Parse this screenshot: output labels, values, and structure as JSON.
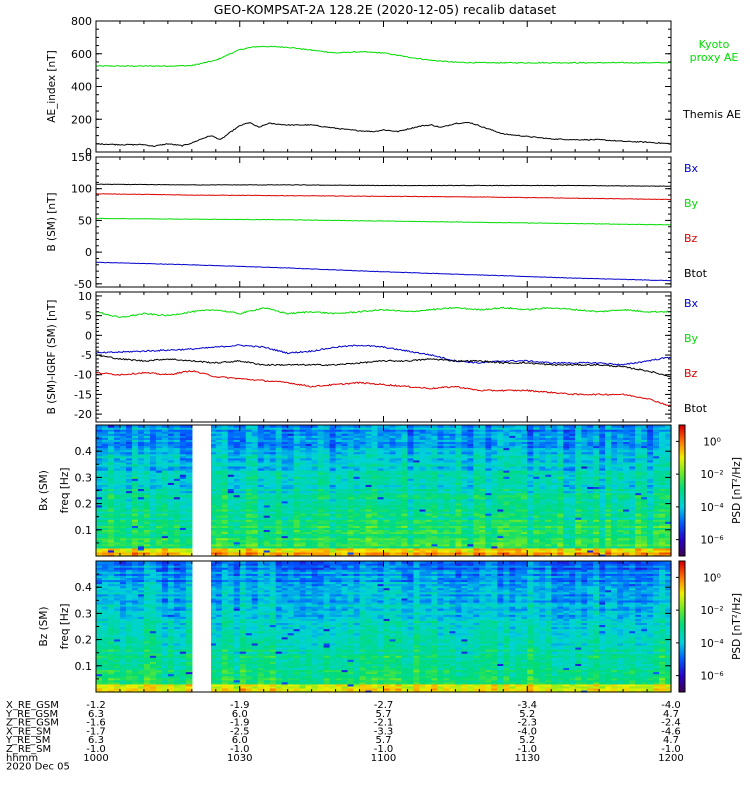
{
  "chart_data": [
    {
      "type": "line",
      "title": "GEO-KOMPSAT-2A 128.2E (2020-12-05) recalib dataset",
      "ylabel": "AE_index [nT]",
      "ylim": [
        0,
        800
      ],
      "yticks": [
        0,
        200,
        400,
        600,
        800
      ],
      "xlim": [
        0,
        120
      ],
      "series": [
        {
          "name": "Kyoto proxy AE",
          "label_lines": [
            "Kyoto",
            "proxy AE"
          ],
          "color": "#00dd00",
          "x": [
            0,
            5,
            10,
            15,
            20,
            25,
            28,
            30,
            33,
            35,
            40,
            45,
            50,
            55,
            60,
            65,
            70,
            75,
            80,
            85,
            90,
            95,
            100,
            110,
            120
          ],
          "values": [
            525,
            525,
            525,
            525,
            528,
            560,
            600,
            625,
            642,
            645,
            640,
            622,
            605,
            612,
            605,
            580,
            560,
            548,
            545,
            545,
            545,
            545,
            545,
            545,
            545
          ]
        },
        {
          "name": "Themis AE",
          "label_lines": [
            "Themis AE"
          ],
          "color": "#000000",
          "x": [
            0,
            5,
            10,
            12,
            15,
            18,
            20,
            22,
            24,
            26,
            28,
            30,
            32,
            34,
            36,
            38,
            40,
            45,
            50,
            53,
            55,
            58,
            60,
            63,
            65,
            68,
            70,
            72,
            75,
            78,
            80,
            85,
            90,
            95,
            100,
            105,
            110,
            115,
            120
          ],
          "values": [
            50,
            45,
            45,
            35,
            50,
            38,
            55,
            80,
            100,
            75,
            120,
            160,
            180,
            150,
            175,
            170,
            165,
            165,
            145,
            135,
            130,
            125,
            135,
            125,
            140,
            160,
            165,
            150,
            175,
            180,
            160,
            110,
            95,
            80,
            75,
            75,
            65,
            60,
            50
          ]
        }
      ]
    },
    {
      "type": "line",
      "ylabel": "B (SM) [nT]",
      "ylim": [
        -55,
        150
      ],
      "yticks": [
        -50,
        0,
        50,
        100,
        150
      ],
      "xlim": [
        0,
        120
      ],
      "series": [
        {
          "name": "Bx",
          "color": "#0000cc",
          "x": [
            0,
            20,
            40,
            60,
            80,
            100,
            120
          ],
          "values": [
            -16,
            -20,
            -25,
            -31,
            -36,
            -41,
            -45
          ]
        },
        {
          "name": "By",
          "color": "#00dd00",
          "x": [
            0,
            20,
            40,
            60,
            80,
            100,
            120
          ],
          "values": [
            53,
            52,
            51,
            49,
            47,
            45,
            43
          ]
        },
        {
          "name": "Bz",
          "color": "#dd0000",
          "x": [
            0,
            20,
            40,
            60,
            80,
            100,
            120
          ],
          "values": [
            92,
            90,
            89,
            88,
            87,
            85,
            83
          ]
        },
        {
          "name": "Btot",
          "color": "#000000",
          "x": [
            0,
            20,
            40,
            60,
            80,
            100,
            120
          ],
          "values": [
            107,
            106,
            106,
            105,
            105,
            105,
            104
          ]
        }
      ]
    },
    {
      "type": "line",
      "ylabel": "B (SM)-IGRF (SM) [nT]",
      "ylim": [
        -22,
        11
      ],
      "yticks": [
        -20,
        -15,
        -10,
        -5,
        0,
        5,
        10
      ],
      "xlim": [
        0,
        120
      ],
      "series": [
        {
          "name": "Bx",
          "color": "#0000cc",
          "x": [
            0,
            10,
            20,
            25,
            30,
            35,
            40,
            45,
            50,
            55,
            60,
            65,
            70,
            75,
            80,
            85,
            90,
            95,
            100,
            105,
            110,
            115,
            120
          ],
          "values": [
            -4.5,
            -4.0,
            -3.5,
            -3.0,
            -2.5,
            -3.0,
            -4.5,
            -4.0,
            -3.0,
            -2.5,
            -3.0,
            -4.0,
            -5.0,
            -6.5,
            -7.0,
            -6.5,
            -6.5,
            -7.0,
            -7.0,
            -7.0,
            -7.5,
            -6.5,
            -5.5
          ]
        },
        {
          "name": "By",
          "color": "#00dd00",
          "x": [
            0,
            5,
            10,
            15,
            20,
            25,
            30,
            35,
            40,
            45,
            50,
            55,
            60,
            65,
            70,
            75,
            80,
            85,
            90,
            95,
            100,
            105,
            110,
            115,
            120
          ],
          "values": [
            6.0,
            4.5,
            5.5,
            5.0,
            6.0,
            6.5,
            5.5,
            7.0,
            5.5,
            6.0,
            5.5,
            6.0,
            6.5,
            6.0,
            6.5,
            7.0,
            6.5,
            7.0,
            6.5,
            7.0,
            6.5,
            6.0,
            6.5,
            6.0,
            6.0
          ]
        },
        {
          "name": "Bz",
          "color": "#dd0000",
          "x": [
            0,
            5,
            10,
            15,
            20,
            25,
            30,
            35,
            40,
            45,
            50,
            55,
            60,
            65,
            70,
            75,
            80,
            85,
            90,
            95,
            100,
            105,
            110,
            115,
            120
          ],
          "values": [
            -9.5,
            -10.0,
            -9.5,
            -10.0,
            -9.0,
            -10.5,
            -11.0,
            -11.5,
            -12.0,
            -13.0,
            -12.5,
            -12.0,
            -12.5,
            -13.0,
            -13.5,
            -13.0,
            -14.0,
            -14.0,
            -14.0,
            -14.5,
            -15.0,
            -15.0,
            -15.0,
            -16.0,
            -18.0
          ]
        },
        {
          "name": "Btot",
          "color": "#000000",
          "x": [
            0,
            5,
            10,
            15,
            20,
            25,
            30,
            35,
            40,
            45,
            50,
            55,
            60,
            65,
            70,
            75,
            80,
            85,
            90,
            95,
            100,
            105,
            110,
            115,
            120
          ],
          "values": [
            -5.0,
            -6.0,
            -6.5,
            -6.0,
            -6.5,
            -7.0,
            -6.5,
            -7.5,
            -7.5,
            -7.5,
            -7.5,
            -7.0,
            -6.5,
            -6.5,
            -6.0,
            -6.5,
            -6.5,
            -7.0,
            -7.0,
            -7.5,
            -7.5,
            -7.5,
            -8.0,
            -9.0,
            -10.5
          ]
        }
      ]
    },
    {
      "type": "heatmap",
      "ylabel_lines": [
        "Bx (SM)",
        "freq [Hz]"
      ],
      "ylim": [
        0,
        0.5
      ],
      "yticks": [
        0.1,
        0.2,
        0.3,
        0.4
      ],
      "xlim": [
        0,
        120
      ],
      "data_gap_minutes": [
        20.5,
        24.0
      ],
      "colorbar_label": "PSD [nT²/Hz]",
      "colorbar_ticks": [
        "10⁰",
        "10⁻²",
        "10⁻⁴",
        "10⁻⁶"
      ],
      "colorbar_exponents": [
        0,
        -2,
        -4,
        -6
      ],
      "colorbar_range": [
        -7,
        1
      ]
    },
    {
      "type": "heatmap",
      "ylabel_lines": [
        "Bz (SM)",
        "freq [Hz]"
      ],
      "ylim": [
        0,
        0.5
      ],
      "yticks": [
        0.1,
        0.2,
        0.3,
        0.4
      ],
      "xlim": [
        0,
        120
      ],
      "data_gap_minutes": [
        20.5,
        24.0
      ],
      "colorbar_label": "PSD [nT²/Hz]",
      "colorbar_ticks": [
        "10⁰",
        "10⁻²",
        "10⁻⁴",
        "10⁻⁶"
      ],
      "colorbar_exponents": [
        0,
        -2,
        -4,
        -6
      ],
      "colorbar_range": [
        -7,
        1
      ]
    }
  ],
  "orbit_table": {
    "rows": [
      {
        "label": "X_RE_GSM",
        "values": [
          "-1.2",
          "-1.9",
          "-2.7",
          "-3.4",
          "-4.0"
        ]
      },
      {
        "label": "Y_RE_GSM",
        "values": [
          "6.3",
          "6.0",
          "5.7",
          "5.2",
          "4.7"
        ]
      },
      {
        "label": "Z_RE_GSM",
        "values": [
          "-1.6",
          "-1.9",
          "-2.1",
          "-2.3",
          "-2.4"
        ]
      },
      {
        "label": "X_RE_SM",
        "values": [
          "-1.7",
          "-2.5",
          "-3.3",
          "-4.0",
          "-4.6"
        ]
      },
      {
        "label": "Y_RE_SM",
        "values": [
          "6.3",
          "6.0",
          "5.7",
          "5.2",
          "4.7"
        ]
      },
      {
        "label": "Z_RE_SM",
        "values": [
          "-1.0",
          "-1.0",
          "-1.0",
          "-1.0",
          "-1.0"
        ]
      },
      {
        "label": "hhmm",
        "values": [
          "1000",
          "1030",
          "1100",
          "1130",
          "1200"
        ]
      }
    ],
    "tick_minutes": [
      0,
      30,
      60,
      90,
      120
    ],
    "date_label": "2020 Dec 05"
  }
}
